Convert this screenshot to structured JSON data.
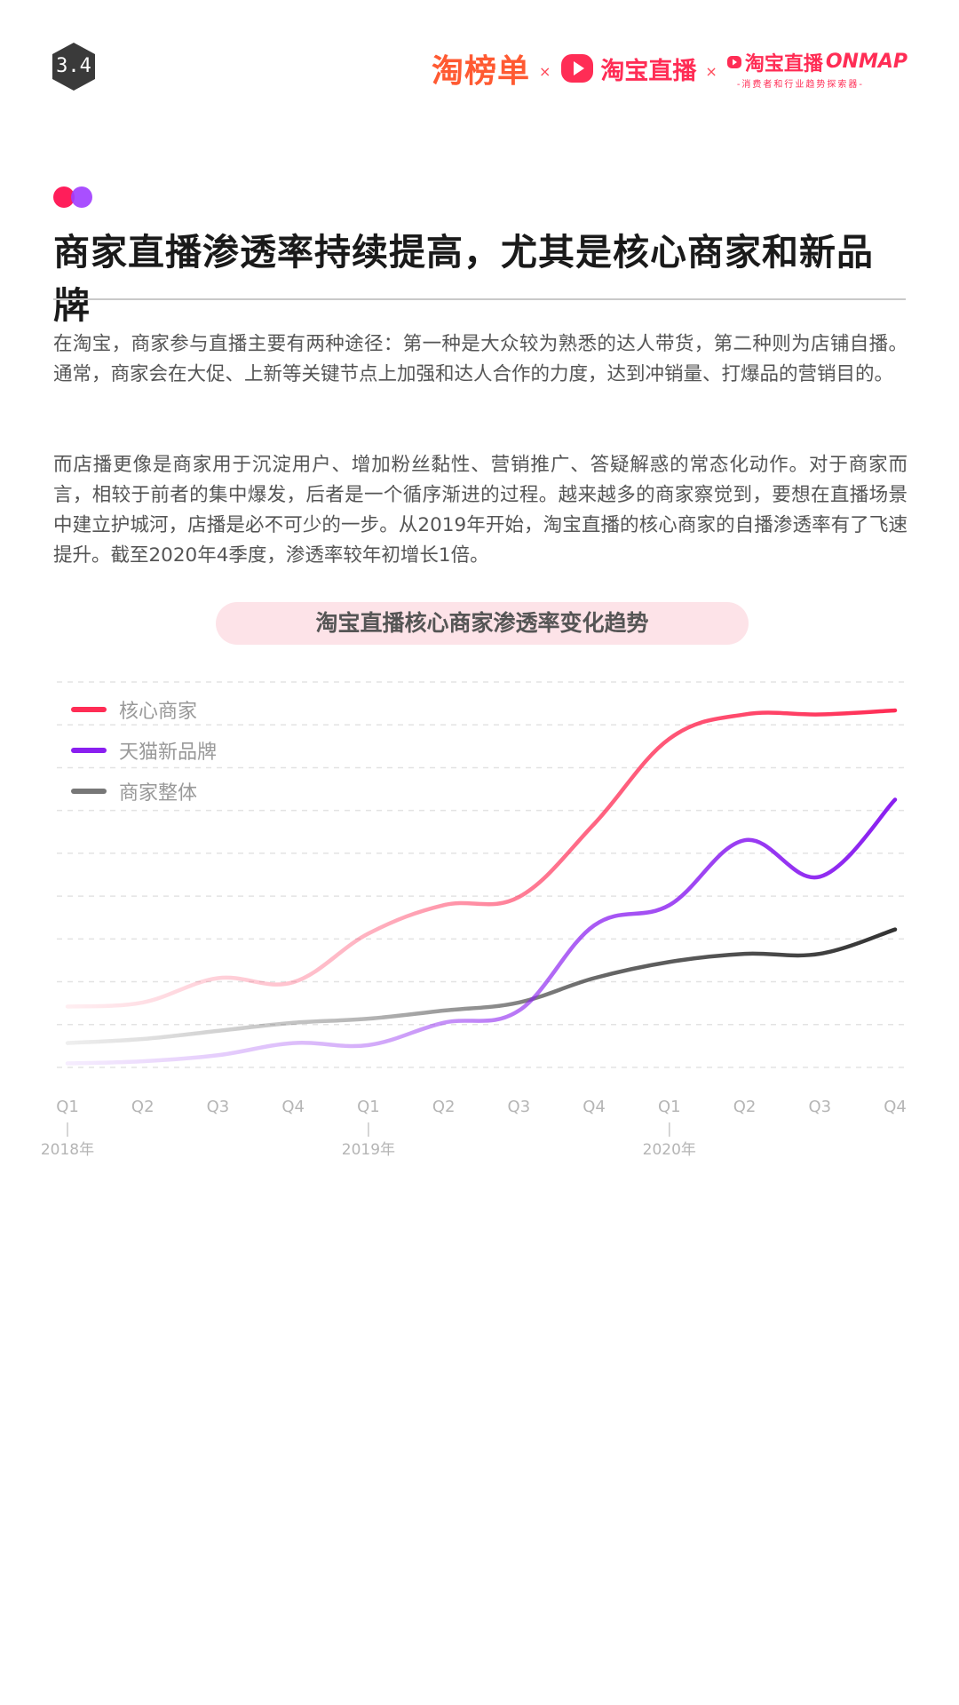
{
  "page_number": "3.4",
  "brands": {
    "bang": "淘榜单",
    "times": "×",
    "live": "淘宝直播",
    "onmap_cn": "淘宝直播",
    "onmap_en": "ONMAP",
    "onmap_sub": "-消费者和行业趋势探索器-"
  },
  "title": "商家直播渗透率持续提高，尤其是核心商家和新品牌",
  "paragraphs": [
    "在淘宝，商家参与直播主要有两种途径：第一种是大众较为熟悉的达人带货，第二种则为店铺自播。通常，商家会在大促、上新等关键节点上加强和达人合作的力度，达到冲销量、打爆品的营销目的。",
    "而店播更像是商家用于沉淀用户、增加粉丝黏性、营销推广、答疑解惑的常态化动作。对于商家而言，相较于前者的集中爆发，后者是一个循序渐进的过程。越来越多的商家察觉到，要想在直播场景中建立护城河，店播是必不可少的一步。从2019年开始，淘宝直播的核心商家的自播渗透率有了飞速提升。截至2020年4季度，渗透率较年初增长1倍。"
  ],
  "colors": {
    "core": "#ff2d55",
    "tmall": "#8a1ff0",
    "overall": "#333333",
    "pill": "#fde3e8"
  },
  "chart_data": {
    "type": "line",
    "title": "淘宝直播核心商家渗透率变化趋势",
    "categories": [
      "Q1",
      "Q2",
      "Q3",
      "Q4",
      "Q1",
      "Q2",
      "Q3",
      "Q4",
      "Q1",
      "Q2",
      "Q3",
      "Q4"
    ],
    "year_labels": [
      {
        "index": 0,
        "label": "2018年"
      },
      {
        "index": 4,
        "label": "2019年"
      },
      {
        "index": 8,
        "label": "2020年"
      }
    ],
    "ylim": [
      0,
      9.5
    ],
    "grid": true,
    "legend_position": "top-left",
    "series": [
      {
        "name": "核心商家",
        "key": "core",
        "values": [
          1.5,
          1.6,
          2.2,
          2.1,
          3.3,
          4.0,
          4.2,
          6.0,
          8.1,
          8.7,
          8.7,
          8.8
        ]
      },
      {
        "name": "天猫新品牌",
        "key": "tmall",
        "values": [
          0.1,
          0.15,
          0.3,
          0.6,
          0.55,
          1.1,
          1.4,
          3.5,
          4.0,
          5.6,
          4.7,
          6.6
        ]
      },
      {
        "name": "商家整体",
        "key": "overall",
        "values": [
          0.6,
          0.7,
          0.9,
          1.1,
          1.2,
          1.4,
          1.6,
          2.2,
          2.6,
          2.8,
          2.8,
          3.4
        ]
      }
    ]
  }
}
